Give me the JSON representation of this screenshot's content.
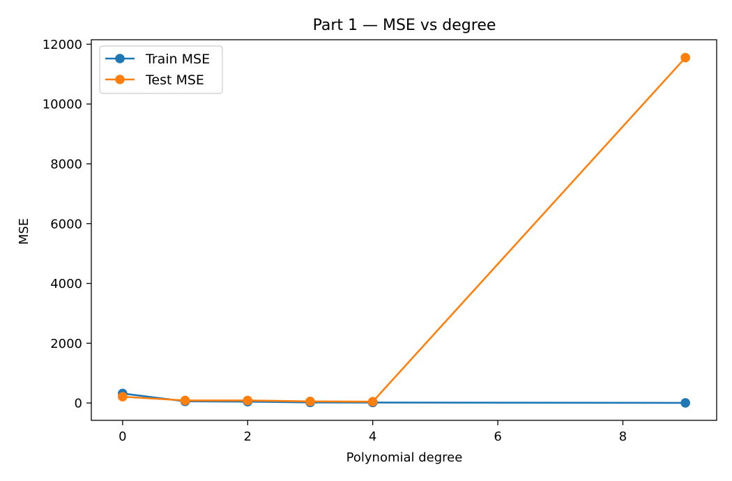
{
  "chart_data": {
    "type": "line",
    "title": "Part 1 — MSE vs degree",
    "xlabel": "Polynomial degree",
    "ylabel": "MSE",
    "xlim": [
      -0.5,
      9.5
    ],
    "ylim": [
      -580,
      12150
    ],
    "xticks": [
      0,
      2,
      4,
      6,
      8
    ],
    "yticks": [
      0,
      2000,
      4000,
      6000,
      8000,
      10000,
      12000
    ],
    "x": [
      0,
      1,
      2,
      3,
      4,
      9
    ],
    "series": [
      {
        "name": "Train MSE",
        "color": "#1f77b4",
        "values": [
          320,
          55,
          45,
          20,
          15,
          5
        ]
      },
      {
        "name": "Test MSE",
        "color": "#ff7f0e",
        "values": [
          210,
          85,
          85,
          55,
          45,
          11550
        ]
      }
    ],
    "legend": "top-left",
    "grid": false
  }
}
